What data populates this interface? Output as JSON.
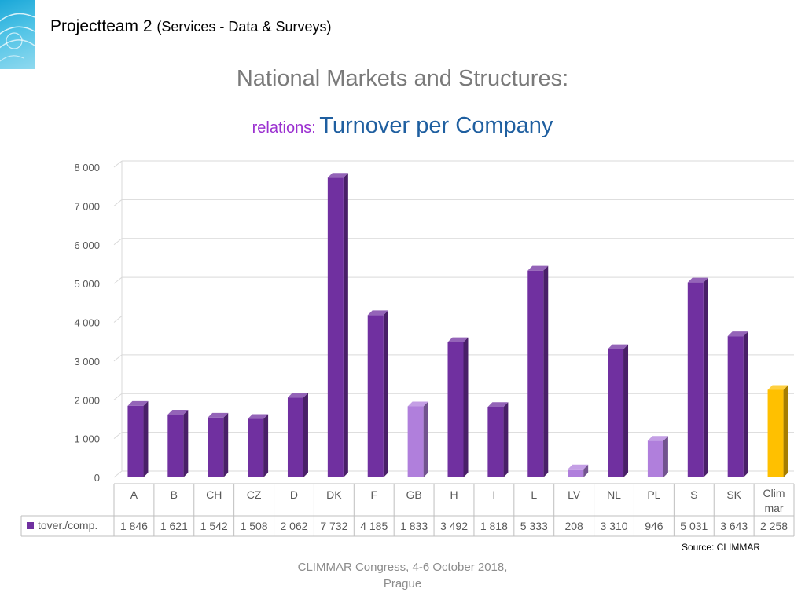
{
  "header": {
    "title": "Projectteam 2",
    "subtitle": "(Services - Data & Surveys)"
  },
  "chart_title": "National Markets and Structures:",
  "chart_subtitle_prefix": "relations:",
  "chart_subtitle_main": "Turnover per Company",
  "source": "Source: CLIMMAR",
  "footer": {
    "line1": "CLIMMAR Congress, 4-6 October 2018,",
    "line2": "Prague"
  },
  "colors": {
    "primary_bar": "#7030a0",
    "light_bar": "#b07fdc",
    "highlight_bar": "#ffc000"
  },
  "chart_data": {
    "type": "bar",
    "categories": [
      "A",
      "B",
      "CH",
      "CZ",
      "D",
      "DK",
      "F",
      "GB",
      "H",
      "I",
      "L",
      "LV",
      "NL",
      "PL",
      "S",
      "SK",
      "Climmar"
    ],
    "category_display": [
      [
        "A"
      ],
      [
        "B"
      ],
      [
        "CH"
      ],
      [
        "CZ"
      ],
      [
        "D"
      ],
      [
        "DK"
      ],
      [
        "F"
      ],
      [
        "GB"
      ],
      [
        "H"
      ],
      [
        "I"
      ],
      [
        "L"
      ],
      [
        "LV"
      ],
      [
        "NL"
      ],
      [
        "PL"
      ],
      [
        "S"
      ],
      [
        "SK"
      ],
      [
        "Clim",
        "mar"
      ]
    ],
    "series": [
      {
        "name": "tover./comp.",
        "values": [
          1846,
          1621,
          1542,
          1508,
          2062,
          7732,
          4185,
          1833,
          3492,
          1818,
          5333,
          208,
          3310,
          946,
          5031,
          3643,
          2258
        ],
        "value_labels": [
          "1 846",
          "1 621",
          "1 542",
          "1 508",
          "2 062",
          "7 732",
          "4 185",
          "1 833",
          "3 492",
          "1 818",
          "5 333",
          "208",
          "3 310",
          "946",
          "5 031",
          "3 643",
          "2 258"
        ],
        "bar_colors": [
          "primary",
          "primary",
          "primary",
          "primary",
          "primary",
          "primary",
          "primary",
          "light",
          "primary",
          "primary",
          "primary",
          "light",
          "primary",
          "light",
          "primary",
          "primary",
          "highlight"
        ]
      }
    ],
    "ylim": [
      0,
      8000
    ],
    "yticks": [
      0,
      1000,
      2000,
      3000,
      4000,
      5000,
      6000,
      7000,
      8000
    ],
    "ytick_labels": [
      "0",
      "1 000",
      "2 000",
      "3 000",
      "4 000",
      "5 000",
      "6 000",
      "7 000",
      "8 000"
    ],
    "grid": true,
    "legend": "data-table",
    "style": "3d-column"
  }
}
